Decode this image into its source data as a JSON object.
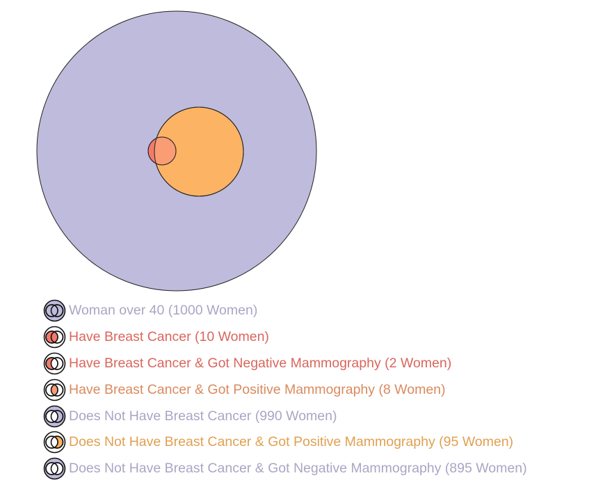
{
  "diagram": {
    "type": "euler",
    "regions": [
      {
        "id": "all",
        "count": 1000,
        "fill": "#bfbbdc"
      },
      {
        "id": "positive",
        "count": 103,
        "fill": "#fcb364"
      },
      {
        "id": "cancer",
        "count": 10,
        "fill": "#f27a6b"
      },
      {
        "id": "cancer_positive_overlap",
        "count": 8,
        "fill": "#fa9d74"
      }
    ]
  },
  "legend": [
    {
      "label": "Woman over 40 (1000 Women)",
      "color": "#a9a6c4",
      "icon": "all-region-icon",
      "fills": {
        "outer": "#bfbbdc",
        "left": "#bfbbdc",
        "right": "#bfbbdc",
        "mid": "#bfbbdc"
      }
    },
    {
      "label": "Have Breast Cancer (10 Women)",
      "color": "#d9665c",
      "icon": "cancer-region-icon",
      "fills": {
        "outer": "#ffffff",
        "left": "#f27a6b",
        "right": "#ffffff",
        "mid": "#f27a6b"
      }
    },
    {
      "label": "Have Breast Cancer & Got Negative Mammography (2 Women)",
      "color": "#d9665c",
      "icon": "cancer-negative-region-icon",
      "fills": {
        "outer": "#ffffff",
        "left": "#f27a6b",
        "right": "#ffffff",
        "mid": "#ffffff"
      }
    },
    {
      "label": "Have Breast Cancer & Got Positive Mammography (8 Women)",
      "color": "#d98a5e",
      "icon": "cancer-positive-region-icon",
      "fills": {
        "outer": "#ffffff",
        "left": "#ffffff",
        "right": "#ffffff",
        "mid": "#fa9d74"
      }
    },
    {
      "label": "Does Not Have Breast Cancer (990 Women)",
      "color": "#a9a6c4",
      "icon": "no-cancer-region-icon",
      "fills": {
        "outer": "#bfbbdc",
        "left": "#ffffff",
        "right": "#bfbbdc",
        "mid": "#ffffff"
      }
    },
    {
      "label": "Does Not Have Breast Cancer & Got Positive Mammography (95 Women)",
      "color": "#e0a050",
      "icon": "no-cancer-positive-region-icon",
      "fills": {
        "outer": "#ffffff",
        "left": "#ffffff",
        "right": "#fcb364",
        "mid": "#ffffff"
      }
    },
    {
      "label": "Does Not Have Breast Cancer & Got Negative Mammography (895 Women)",
      "color": "#a9a6c4",
      "icon": "no-cancer-negative-region-icon",
      "fills": {
        "outer": "#bfbbdc",
        "left": "#ffffff",
        "right": "#ffffff",
        "mid": "#ffffff"
      }
    }
  ]
}
